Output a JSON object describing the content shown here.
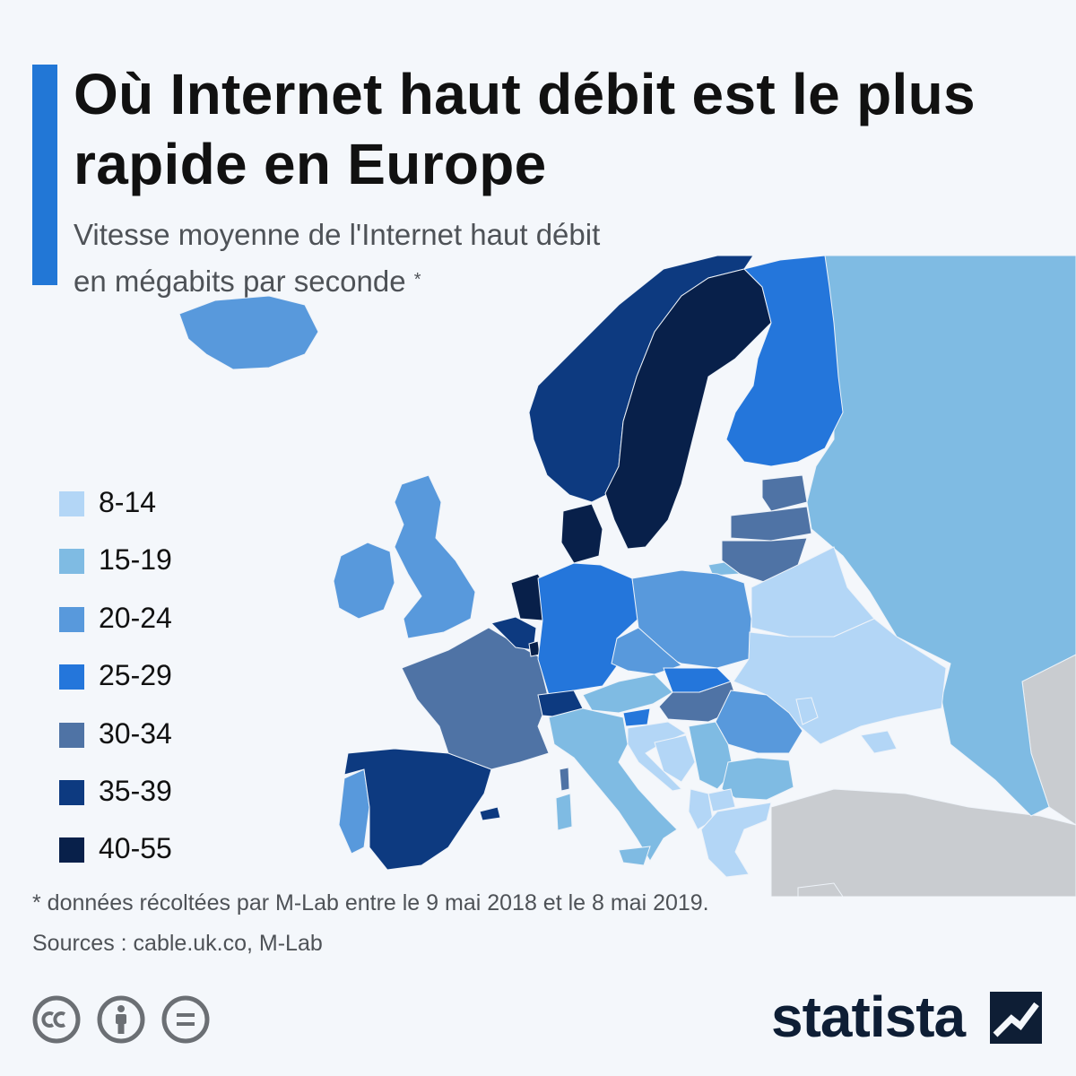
{
  "title": "Où Internet haut débit est le plus rapide en Europe",
  "subtitle": {
    "line1": "Vitesse moyenne de l'Internet haut débit",
    "line2": "en mégabits par seconde",
    "marker": "*"
  },
  "colors": {
    "accent": "#2277d6",
    "no_data": "#c9ccd0",
    "brand": "#0e1e35"
  },
  "legend": [
    {
      "label": "8-14",
      "color": "#b3d6f6"
    },
    {
      "label": "15-19",
      "color": "#7fbbe3"
    },
    {
      "label": "20-24",
      "color": "#5899dc"
    },
    {
      "label": "25-29",
      "color": "#2476db"
    },
    {
      "label": "30-34",
      "color": "#4f73a5"
    },
    {
      "label": "35-39",
      "color": "#0d3a80"
    },
    {
      "label": "40-55",
      "color": "#08204a"
    }
  ],
  "map": {
    "regions": [
      {
        "name": "Iceland",
        "class": "20-24"
      },
      {
        "name": "Ireland",
        "class": "20-24"
      },
      {
        "name": "United Kingdom",
        "class": "20-24"
      },
      {
        "name": "Portugal",
        "class": "20-24"
      },
      {
        "name": "Spain",
        "class": "35-39"
      },
      {
        "name": "France",
        "class": "30-34"
      },
      {
        "name": "Belgium",
        "class": "35-39"
      },
      {
        "name": "Netherlands",
        "class": "40-55"
      },
      {
        "name": "Luxembourg",
        "class": "40-55"
      },
      {
        "name": "Switzerland",
        "class": "35-39"
      },
      {
        "name": "Germany",
        "class": "25-29"
      },
      {
        "name": "Denmark",
        "class": "40-55"
      },
      {
        "name": "Norway",
        "class": "35-39"
      },
      {
        "name": "Sweden",
        "class": "40-55"
      },
      {
        "name": "Finland",
        "class": "25-29"
      },
      {
        "name": "Estonia",
        "class": "30-34"
      },
      {
        "name": "Latvia",
        "class": "30-34"
      },
      {
        "name": "Lithuania",
        "class": "30-34"
      },
      {
        "name": "Poland",
        "class": "20-24"
      },
      {
        "name": "Czechia",
        "class": "20-24"
      },
      {
        "name": "Slovakia",
        "class": "25-29"
      },
      {
        "name": "Austria",
        "class": "15-19"
      },
      {
        "name": "Slovenia",
        "class": "25-29"
      },
      {
        "name": "Hungary",
        "class": "30-34"
      },
      {
        "name": "Croatia",
        "class": "8-14"
      },
      {
        "name": "Bosnia and Herzegovina",
        "class": "8-14"
      },
      {
        "name": "Serbia",
        "class": "15-19"
      },
      {
        "name": "Romania",
        "class": "20-24"
      },
      {
        "name": "Moldova",
        "class": "8-14"
      },
      {
        "name": "Bulgaria",
        "class": "15-19"
      },
      {
        "name": "North Macedonia",
        "class": "8-14"
      },
      {
        "name": "Albania",
        "class": "8-14"
      },
      {
        "name": "Greece",
        "class": "8-14"
      },
      {
        "name": "Italy",
        "class": "15-19"
      },
      {
        "name": "Belarus",
        "class": "8-14"
      },
      {
        "name": "Ukraine",
        "class": "8-14"
      },
      {
        "name": "Russia",
        "class": "15-19"
      }
    ]
  },
  "footnote": "* données récoltées par M-Lab entre le 9 mai 2018 et le 8 mai 2019.",
  "sources": "Sources : cable.uk.co, M-Lab",
  "license_icons": [
    "cc-icon",
    "attribution-icon",
    "no-derivatives-icon"
  ],
  "brand": {
    "name": "statista"
  }
}
